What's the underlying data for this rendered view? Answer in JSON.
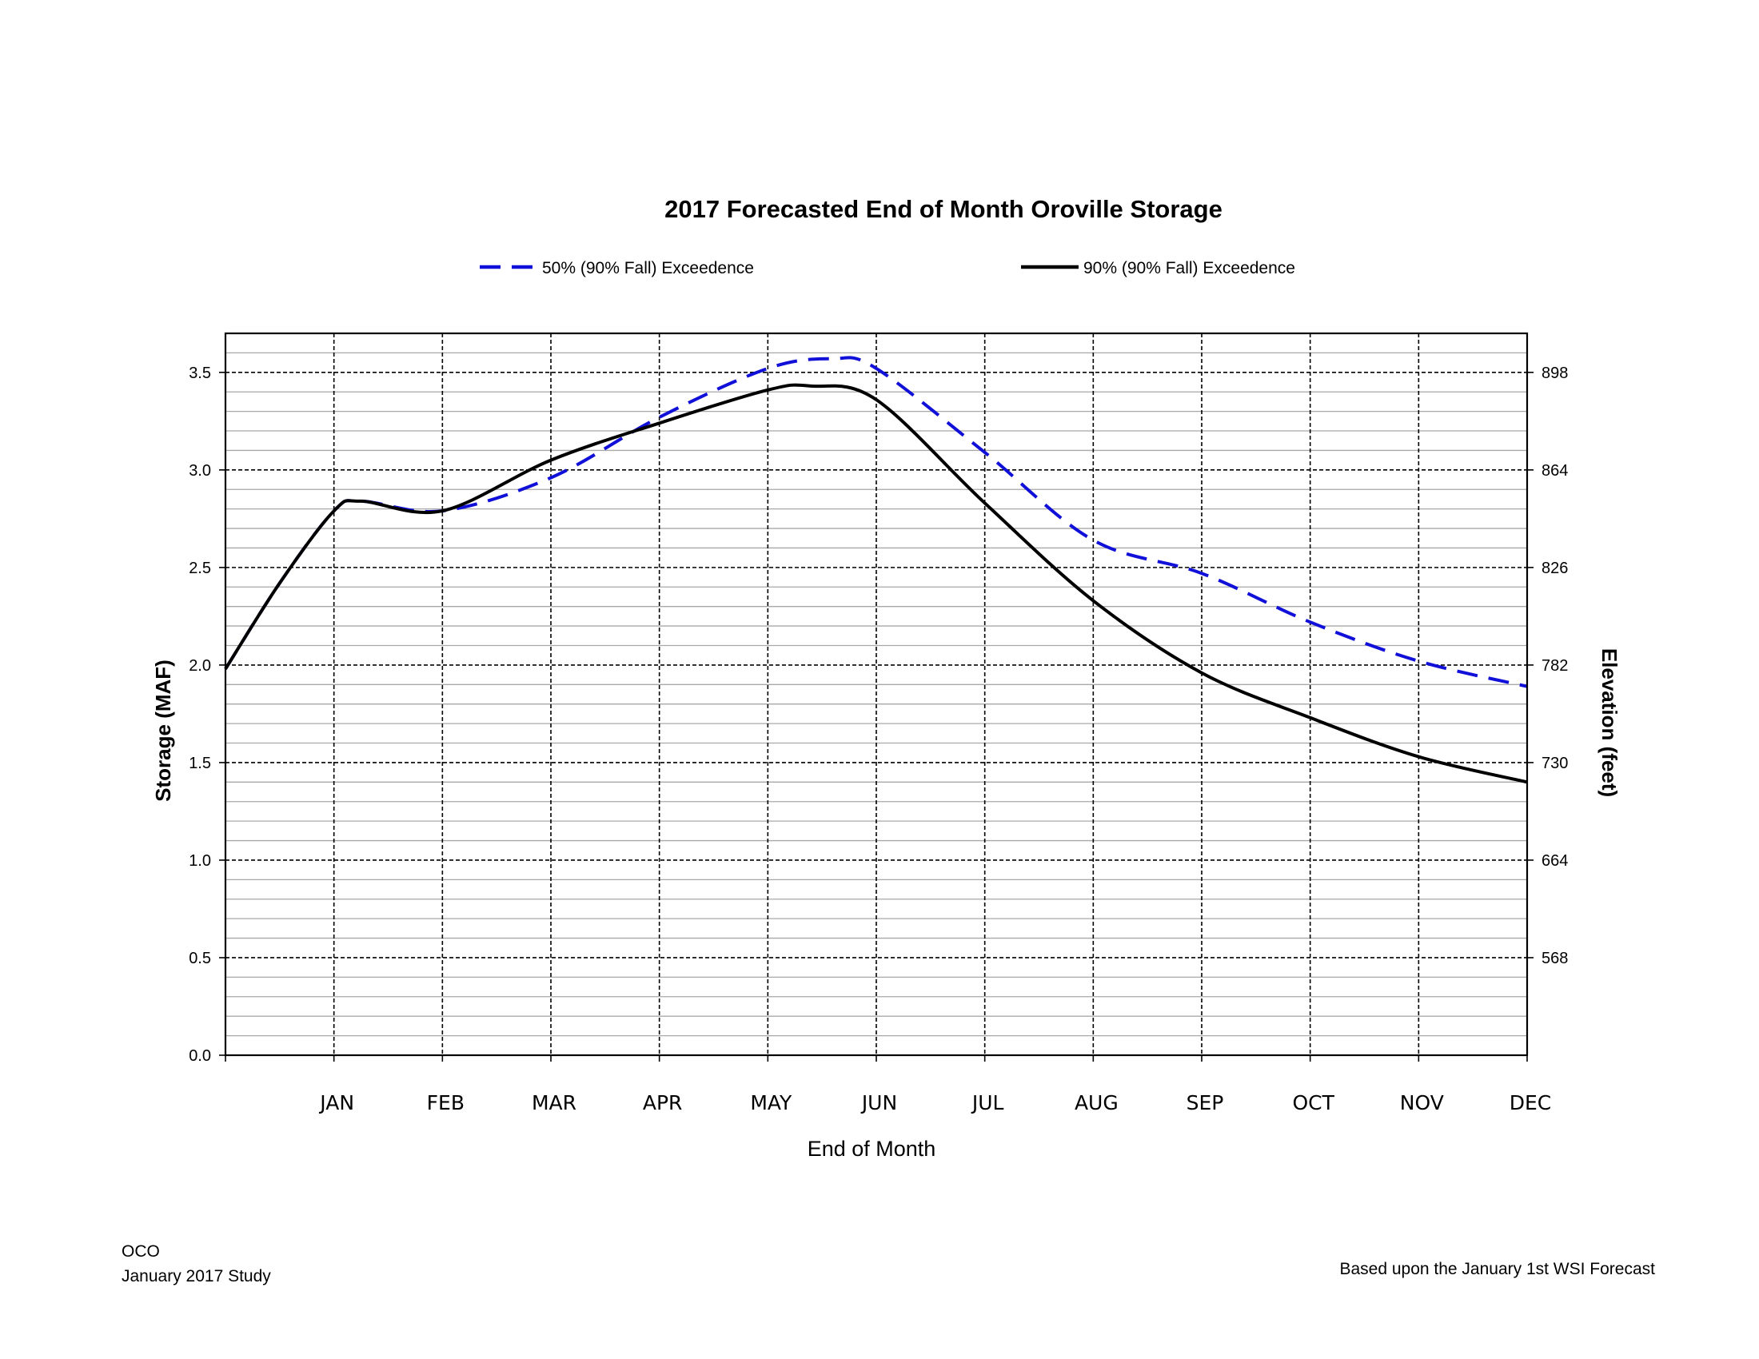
{
  "footer": {
    "org": "OCO",
    "study": "January 2017 Study",
    "basis": "Based upon the January 1st WSI  Forecast"
  },
  "chart_data": {
    "type": "line",
    "title": "2017 Forecasted End of Month Oroville Storage",
    "xlabel": "End of Month",
    "ylabel": "Storage (MAF)",
    "y2label": "Elevation (feet)",
    "ylim": [
      0,
      3.7
    ],
    "y_major_ticks": [
      0.0,
      0.5,
      1.0,
      1.5,
      2.0,
      2.5,
      3.0,
      3.5
    ],
    "y_tick_labels": [
      "0.0",
      "0.5",
      "1.0",
      "1.5",
      "2.0",
      "2.5",
      "3.0",
      "3.5"
    ],
    "y_minor_step": 0.1,
    "y2_ticks": [
      {
        "storage": 0.5,
        "label": "568"
      },
      {
        "storage": 1.0,
        "label": "664"
      },
      {
        "storage": 1.5,
        "label": "730"
      },
      {
        "storage": 2.0,
        "label": "782"
      },
      {
        "storage": 2.5,
        "label": "826"
      },
      {
        "storage": 3.0,
        "label": "864"
      },
      {
        "storage": 3.5,
        "label": "898"
      }
    ],
    "categories": [
      "JAN",
      "FEB",
      "MAR",
      "APR",
      "MAY",
      "JUN",
      "JUL",
      "AUG",
      "SEP",
      "OCT",
      "NOV",
      "DEC"
    ],
    "grid": true,
    "legend_position": "top",
    "series": [
      {
        "name": "50% (90% Fall)  Exceedence",
        "color": "#1010d8",
        "style": "dashed",
        "values": [
          [
            0,
            1.98
          ],
          [
            0.5,
            2.42
          ],
          [
            1,
            2.79
          ],
          [
            1.25,
            2.84
          ],
          [
            2,
            2.79
          ],
          [
            3,
            2.96
          ],
          [
            4,
            3.27
          ],
          [
            5,
            3.52
          ],
          [
            5.6,
            3.57
          ],
          [
            6,
            3.52
          ],
          [
            7,
            3.09
          ],
          [
            8,
            2.64
          ],
          [
            9,
            2.47
          ],
          [
            10,
            2.22
          ],
          [
            11,
            2.02
          ],
          [
            12,
            1.89
          ]
        ]
      },
      {
        "name": "90% (90% Fall) Exceedence",
        "color": "#000000",
        "style": "solid",
        "values": [
          [
            0,
            1.98
          ],
          [
            0.5,
            2.42
          ],
          [
            1,
            2.79
          ],
          [
            1.25,
            2.84
          ],
          [
            2,
            2.79
          ],
          [
            3,
            3.05
          ],
          [
            4,
            3.24
          ],
          [
            5,
            3.41
          ],
          [
            5.4,
            3.43
          ],
          [
            6,
            3.36
          ],
          [
            7,
            2.83
          ],
          [
            8,
            2.33
          ],
          [
            9,
            1.96
          ],
          [
            10,
            1.73
          ],
          [
            11,
            1.53
          ],
          [
            12,
            1.4
          ]
        ]
      }
    ]
  }
}
